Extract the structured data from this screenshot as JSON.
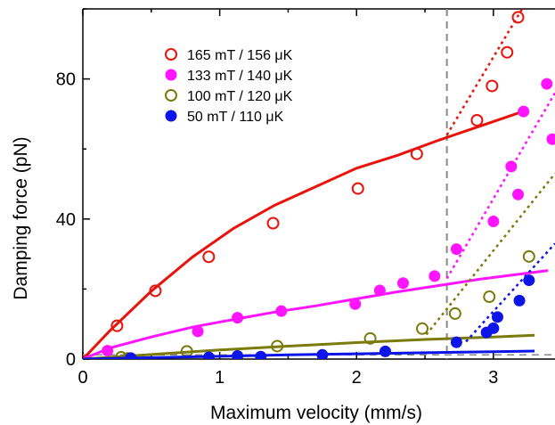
{
  "chart_data": {
    "type": "scatter",
    "xlabel": "Maximum velocity (mm/s)",
    "ylabel": "Damping force (pN)",
    "xlim": [
      0,
      3.45
    ],
    "ylim": [
      0,
      100
    ],
    "xticks": [
      0,
      1,
      2,
      3
    ],
    "yticks": [
      0,
      40,
      80
    ],
    "grid": false,
    "legend": "top-left",
    "series": [
      {
        "name": "165 mT / 156 μK",
        "color": "#e8140c",
        "marker": "open-circle",
        "points": [
          [
            0.25,
            9.5
          ],
          [
            0.53,
            19.5
          ],
          [
            0.92,
            29.2
          ],
          [
            1.39,
            38.8
          ],
          [
            2.01,
            48.7
          ],
          [
            2.44,
            58.6
          ],
          [
            2.88,
            68.2
          ],
          [
            2.99,
            78.0
          ],
          [
            3.1,
            87.6
          ],
          [
            3.18,
            97.6
          ]
        ],
        "fit_x": [
          0,
          0.2,
          0.5,
          0.8,
          1.1,
          1.4,
          1.7,
          2.0,
          2.3,
          2.6,
          2.9,
          3.2
        ],
        "fit_y": [
          0,
          8.2,
          19.4,
          29.1,
          37.3,
          43.9,
          49.2,
          54.5,
          58.2,
          62.5,
          66.5,
          70.5
        ],
        "line_x": [
          2.66,
          3.21
        ],
        "line_y": [
          64,
          100
        ]
      },
      {
        "name": "133 mT / 140 μK",
        "color": "#ff14ff",
        "marker": "filled-circle",
        "points": [
          [
            0.18,
            2.4
          ],
          [
            0.84,
            7.9
          ],
          [
            1.13,
            11.8
          ],
          [
            1.45,
            13.7
          ],
          [
            1.99,
            15.7
          ],
          [
            2.17,
            19.6
          ],
          [
            2.34,
            21.7
          ],
          [
            2.57,
            23.7
          ],
          [
            2.73,
            31.4
          ],
          [
            3.0,
            39.3
          ],
          [
            3.18,
            47.0
          ],
          [
            3.13,
            55.0
          ],
          [
            3.22,
            70.7
          ],
          [
            3.39,
            78.6
          ],
          [
            3.43,
            62.8
          ]
        ],
        "fit_x": [
          0,
          0.2,
          0.5,
          0.8,
          1.1,
          1.4,
          1.7,
          2.0,
          2.3,
          2.6,
          2.9,
          3.2,
          3.4
        ],
        "fit_y": [
          0,
          3.2,
          6.3,
          9.1,
          11.3,
          13.4,
          15.2,
          17.2,
          19.2,
          21.0,
          22.8,
          24.3,
          25.3
        ],
        "line_x": [
          2.66,
          3.45
        ],
        "line_y": [
          23,
          76
        ]
      },
      {
        "name": "100 mT / 120 μK",
        "color": "#7b7b0c",
        "marker": "open-circle",
        "points": [
          [
            0.28,
            0.5
          ],
          [
            0.33,
            0.2
          ],
          [
            0.76,
            2.2
          ],
          [
            1.42,
            3.7
          ],
          [
            2.1,
            5.9
          ],
          [
            2.48,
            8.7
          ],
          [
            2.72,
            13.0
          ],
          [
            2.97,
            17.8
          ],
          [
            3.26,
            29.3
          ]
        ],
        "fit_x": [
          0,
          0.5,
          1.0,
          1.5,
          2.0,
          2.5,
          3.0,
          3.3
        ],
        "fit_y": [
          0,
          1.3,
          2.6,
          3.7,
          4.7,
          5.6,
          6.3,
          6.8
        ],
        "line_x": [
          2.51,
          3.45
        ],
        "line_y": [
          7,
          53
        ]
      },
      {
        "name": "50 mT / 110 μK",
        "color": "#0c14e8",
        "marker": "filled-circle",
        "points": [
          [
            0.35,
            0.3
          ],
          [
            0.92,
            0.5
          ],
          [
            1.13,
            0.9
          ],
          [
            1.3,
            0.7
          ],
          [
            1.75,
            1.2
          ],
          [
            2.21,
            2.2
          ],
          [
            2.73,
            4.8
          ],
          [
            2.95,
            7.6
          ],
          [
            3.0,
            8.8
          ],
          [
            3.03,
            12.0
          ],
          [
            3.19,
            16.7
          ],
          [
            3.26,
            22.5
          ]
        ],
        "fit_x": [
          0,
          0.5,
          1.0,
          1.5,
          2.0,
          2.5,
          3.0,
          3.3
        ],
        "fit_y": [
          0,
          0.4,
          0.8,
          1.2,
          1.5,
          1.8,
          2.1,
          2.3
        ],
        "line_x": [
          2.8,
          3.45
        ],
        "line_y": [
          5,
          33
        ]
      }
    ],
    "reference_lines": {
      "vertical_x": 2.66,
      "horizontal_y": 1.2
    }
  }
}
